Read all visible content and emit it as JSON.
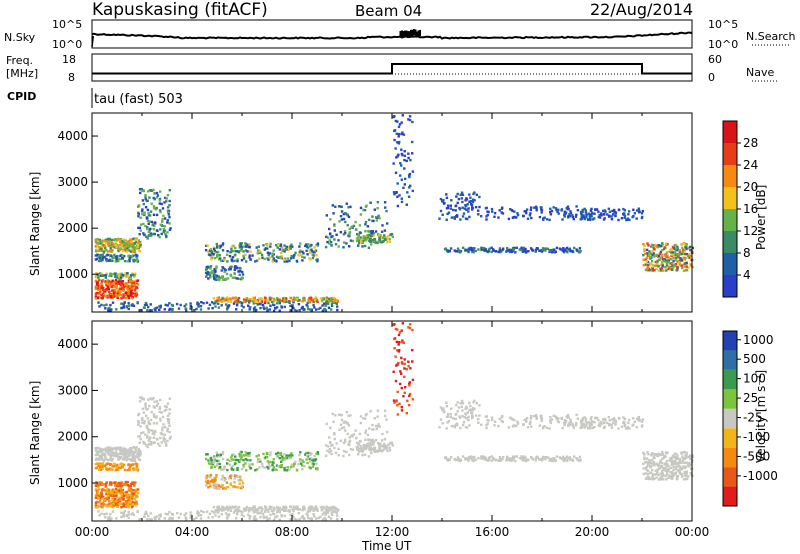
{
  "header": {
    "radar": "Kapuskasing (fitACF)",
    "beam": "Beam 04",
    "date": "22/Aug/2014"
  },
  "noise_panel": {
    "left_label": "N.Sky",
    "right_label": "N.Search",
    "left_ticks": [
      "10^5",
      "10^0"
    ],
    "right_ticks": [
      "10^5",
      "10^0"
    ]
  },
  "freq_panel": {
    "left_label_1": "Freq.",
    "left_label_2": "[MHz]",
    "right_label": "Nave",
    "left_ticks": [
      "18",
      "8"
    ],
    "right_ticks": [
      "60",
      "0"
    ]
  },
  "cpid_panel": {
    "label": "CPID",
    "value": "tau (fast) 503"
  },
  "chart_data": {
    "type": "heatmap",
    "x_axis": {
      "label": "Time UT",
      "ticks": [
        "00:00",
        "04:00",
        "08:00",
        "12:00",
        "16:00",
        "20:00",
        "00:00"
      ],
      "range_hours": [
        0,
        24
      ]
    },
    "power_panel": {
      "ylabel": "Slant Range [km]",
      "yticks": [
        "1000",
        "2000",
        "3000",
        "4000"
      ],
      "ylim": [
        180,
        4500
      ],
      "colorbar_label": "Power [dB]",
      "colorbar_ticks": [
        "4",
        "8",
        "12",
        "16",
        "20",
        "24",
        "28"
      ],
      "colors": [
        "#2a3fc9",
        "#1f5fa8",
        "#3a8a66",
        "#66b24a",
        "#f2c21a",
        "#f48a12",
        "#e83c16",
        "#d8141a"
      ]
    },
    "velocity_panel": {
      "ylabel": "Slant Range [km]",
      "yticks": [
        "1000",
        "2000",
        "3000",
        "4000"
      ],
      "ylim": [
        180,
        4500
      ],
      "colorbar_label": "Velocity [m s⁻¹]",
      "colorbar_ticks": [
        "1000",
        "500",
        "100",
        "25",
        "-25",
        "-100",
        "-500",
        "-1000"
      ],
      "colors": [
        "#2142b0",
        "#2f6fa8",
        "#3a9a50",
        "#7cc43c",
        "#c8c8c2",
        "#f2b418",
        "#f48a12",
        "#e85818",
        "#e01c1c"
      ]
    }
  }
}
